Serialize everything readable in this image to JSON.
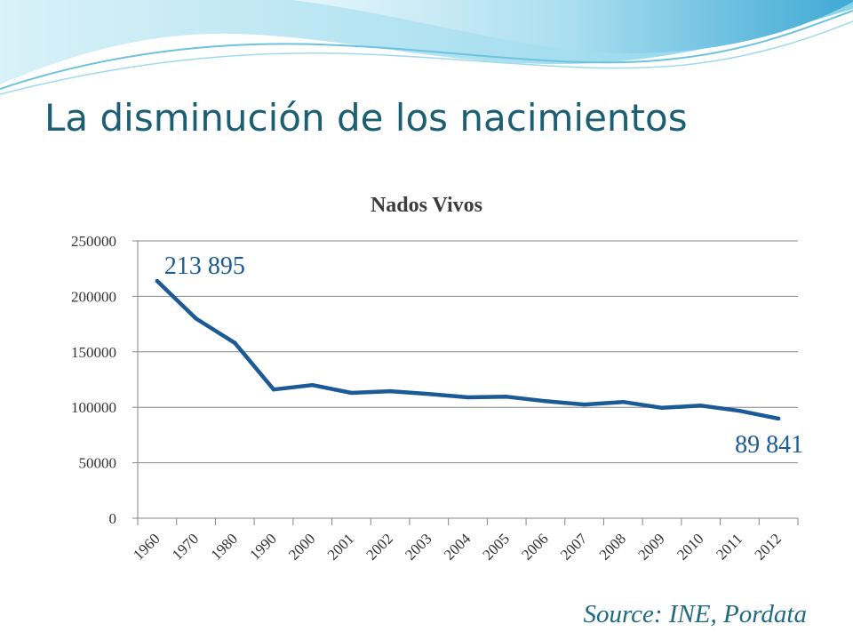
{
  "slide": {
    "title": "La disminución de los nacimientos",
    "source": "Source: INE, Pordata"
  },
  "colors": {
    "title": "#1c5f73",
    "line": "#1b5a96",
    "grid": "#868686",
    "annotation": "#1b5a96",
    "source": "#1f6a80",
    "wave_light": "#bfe7f2",
    "wave_mid": "#7fcfe5",
    "wave_dark": "#3aa6d0"
  },
  "chart_data": {
    "type": "line",
    "title": "Nados Vivos",
    "xlabel": "",
    "ylabel": "",
    "categories": [
      "1960",
      "1970",
      "1980",
      "1990",
      "2000",
      "2001",
      "2002",
      "2003",
      "2004",
      "2005",
      "2006",
      "2007",
      "2008",
      "2009",
      "2010",
      "2011",
      "2012"
    ],
    "series": [
      {
        "values": [
          213895,
          180000,
          158000,
          116000,
          120000,
          113000,
          114500,
          112000,
          109000,
          109500,
          105500,
          102500,
          104800,
          99500,
          101500,
          96800,
          89841
        ]
      }
    ],
    "ylim": [
      0,
      250000
    ],
    "yticks": [
      "0",
      "50000",
      "100000",
      "150000",
      "200000",
      "250000"
    ],
    "grid": true,
    "legend": "none",
    "annotations": [
      {
        "text": "213 895",
        "at": "1960"
      },
      {
        "text": "89 841",
        "at": "2012"
      }
    ]
  }
}
